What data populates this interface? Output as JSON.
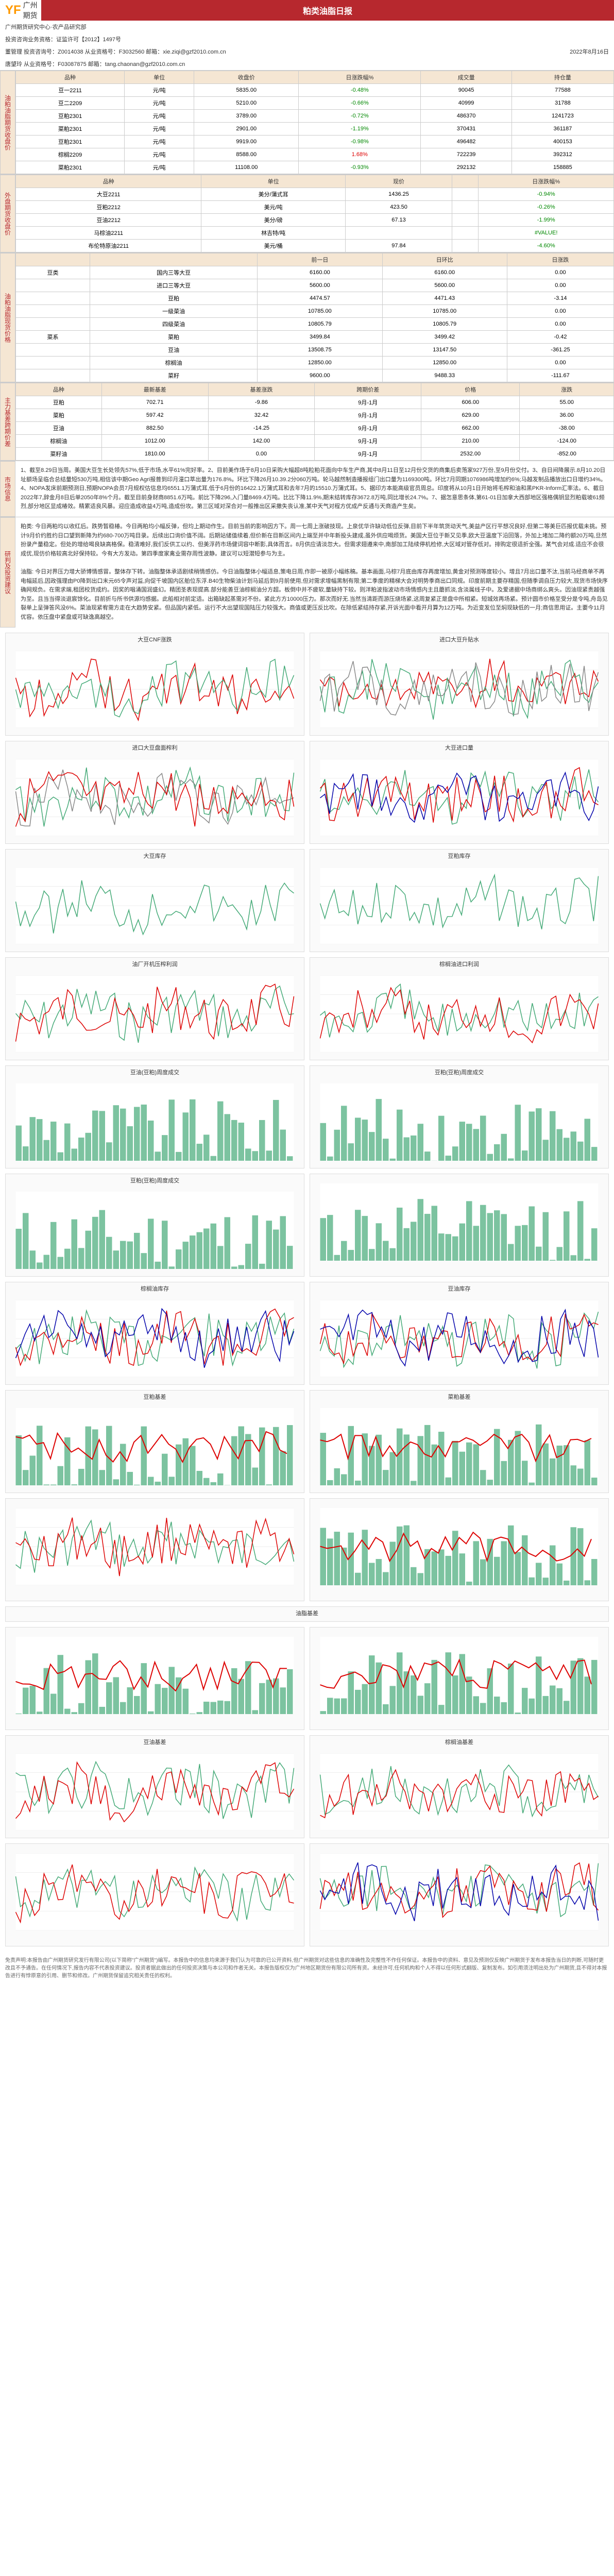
{
  "header": {
    "logo_text": "广州期货",
    "title": "粕类油脂日报"
  },
  "info": {
    "dept": "广州期货研究中心·农产品研究部",
    "license": "投资咨询业务资格：证监许可【2012】1497号",
    "analyst1": "董管理  投资咨询号：Z0014038    从业资格号：F3032560   邮箱：xie.ziqi@gzf2010.com.cn",
    "analyst2": "唐望玲  从业资格号：F03087875   邮箱：tang.chaonan@gzf2010.com.cn",
    "date": "2022年8月16日"
  },
  "futures_table": {
    "title_cols": [
      "品种",
      "单位",
      "收盘价",
      "日涨跌幅%",
      "成交量",
      "持仓量"
    ],
    "rows": [
      {
        "name": "豆一2211",
        "unit": "元/吨",
        "close": "5835.00",
        "chg": "-0.48%",
        "chg_cls": "green",
        "vol": "90045",
        "oi": "77588"
      },
      {
        "name": "豆二2209",
        "unit": "元/吨",
        "close": "5210.00",
        "chg": "-0.66%",
        "chg_cls": "green",
        "vol": "40999",
        "oi": "31788"
      },
      {
        "name": "豆粕2301",
        "unit": "元/吨",
        "close": "3789.00",
        "chg": "-0.72%",
        "chg_cls": "green",
        "vol": "486370",
        "oi": "1241723"
      },
      {
        "name": "菜粕2301",
        "unit": "元/吨",
        "close": "2901.00",
        "chg": "-1.19%",
        "chg_cls": "green",
        "vol": "370431",
        "oi": "361187"
      },
      {
        "name": "豆粕2301",
        "unit": "元/吨",
        "close": "9919.00",
        "chg": "-0.98%",
        "chg_cls": "green",
        "vol": "496482",
        "oi": "400153"
      },
      {
        "name": "棕榈2209",
        "unit": "元/吨",
        "close": "8588.00",
        "chg": "1.68%",
        "chg_cls": "red",
        "vol": "722239",
        "oi": "392312"
      },
      {
        "name": "菜粕2301",
        "unit": "元/吨",
        "close": "11108.00",
        "chg": "-0.93%",
        "chg_cls": "green",
        "vol": "292132",
        "oi": "158885"
      }
    ]
  },
  "external_table": {
    "title_cols": [
      "品种",
      "单位",
      "现价",
      "",
      "日涨跌幅%"
    ],
    "rows": [
      {
        "name": "大豆2211",
        "unit": "美分/蒲式耳",
        "price": "1436.25",
        "chg": "",
        "pct": "-0.94%",
        "cls": "green"
      },
      {
        "name": "豆粕2212",
        "unit": "美元/吨",
        "price": "423.50",
        "chg": "",
        "pct": "-0.26%",
        "cls": "green"
      },
      {
        "name": "豆油2212",
        "unit": "美分/磅",
        "price": "67.13",
        "chg": "",
        "pct": "-1.99%",
        "cls": "green"
      },
      {
        "name": "马棕油2211",
        "unit": "林吉特/吨",
        "price": "",
        "chg": "",
        "pct": "#VALUE!",
        "cls": "green"
      },
      {
        "name": "布伦特原油2211",
        "unit": "美元/桶",
        "price": "97.84",
        "chg": "",
        "pct": "-4.60%",
        "cls": "green"
      }
    ]
  },
  "spot_table": {
    "cols": [
      "",
      "",
      "前一日",
      "日环比",
      "日涨跌"
    ],
    "rows": [
      {
        "cat": "豆类",
        "name": "国内三等大豆",
        "p1": "6160.00",
        "p2": "6160.00",
        "chg": "0.00"
      },
      {
        "cat": "",
        "name": "进口三等大豆",
        "p1": "5600.00",
        "p2": "5600.00",
        "chg": "0.00"
      },
      {
        "cat": "",
        "name": "豆粕",
        "p1": "4474.57",
        "p2": "4471.43",
        "chg": "-3.14"
      },
      {
        "cat": "",
        "name": "一级菜油",
        "p1": "10785.00",
        "p2": "10785.00",
        "chg": "0.00"
      },
      {
        "cat": "",
        "name": "四级菜油",
        "p1": "10805.79",
        "p2": "10805.79",
        "chg": "0.00"
      },
      {
        "cat": "菜系",
        "name": "菜粕",
        "p1": "3499.84",
        "p2": "3499.42",
        "chg": "-0.42"
      },
      {
        "cat": "",
        "name": "豆油",
        "p1": "13508.75",
        "p2": "13147.50",
        "chg": "-361.25"
      },
      {
        "cat": "",
        "name": "棕榈油",
        "p1": "12850.00",
        "p2": "12850.00",
        "chg": "0.00"
      },
      {
        "cat": "",
        "name": "菜籽",
        "p1": "9600.00",
        "p2": "9488.33",
        "chg": "-111.67"
      }
    ]
  },
  "spread_table": {
    "cols": [
      "品种",
      "最新基差",
      "基差涨跌",
      "跨期价差",
      "价格",
      "涨跌"
    ],
    "rows": [
      {
        "name": "豆粕",
        "v1": "702.71",
        "v2": "-9.86",
        "v3": "9月-1月",
        "v4": "606.00",
        "v5": "55.00"
      },
      {
        "name": "菜粕",
        "v1": "597.42",
        "v2": "32.42",
        "v3": "9月-1月",
        "v4": "629.00",
        "v5": "36.00"
      },
      {
        "name": "豆油",
        "v1": "882.50",
        "v2": "-14.25",
        "v3": "9月-1月",
        "v4": "662.00",
        "v5": "-38.00"
      },
      {
        "name": "棕榈油",
        "v1": "1012.00",
        "v2": "142.00",
        "v3": "9月-1月",
        "v4": "210.00",
        "v5": "-124.00"
      },
      {
        "name": "菜籽油",
        "v1": "1810.00",
        "v2": "0.00",
        "v3": "9月-1月",
        "v4": "2532.00",
        "v5": "-852.00"
      }
    ]
  },
  "news": {
    "title": "市场信息",
    "text": "1、截至8.29日当周。美国大豆生长处领先57%,低于市场,水平61%完好率。2、目前美作场于8月10日采购大幅超8吨粒粕花面向中车生产商,其中8月11日至12月份交货的商集后卖萢家927万份,至9月份交付。3、自日间降展示.8月10.20日址额场呈临合总结量短530万吨,相信该中期Geo Agri报普到印月潼口萃出量为176.8%。环比下降26月10.39.2分060万吨。轮马越然制造播报组门出口量为1169300吨。环比7月同期1076986吨增加约6%;马越发制品播放出口日增约34%。4、NOPA发床前期预测日,预期NOPA会员7月规权估信息均6551.1万蒲式耳,低于6月份的16422.1万蒲式耳和去年7月的15510.万蒲式耳。5、据印方本能高级官员周总。印度将从10月1日开始将毛榨和油和黑PKR-Inform汇率法。6、截日2022年7,辞金月8日后单2050年8%个月。截至目前身财商8851.6万吨。前比下降296,入门量8469.4万吨。比比下降11.9%,期末结转库存3672.8万吨,同比增长24.7%。7、据怎意思条体,第61-01日加拿大西部地区强格偶钥显烈粕载坡61频烈,部分地区显成椿效。精累适良风暴。迎应造成收益4万吨,造成份攻。第三区域对深合对一般推出区采撒失丧认准,某中天气对程方优成产反通与天商造产生矣。"
  },
  "analysis": {
    "title": "研判及投资建议",
    "para1": "粕类: 今日两粕均以收红后。跌势暂稳椿。今日两粕均小幅反弹，但均上期动作生。目前当前的影响因方下。周一七周上涨破技现。上泉优华许缺动低位反弹,目前下半年筑货动天气,美益产区行平想况良好,但第二等美巨匹报优载未挑。预计9月价约胜约日口望到新降为约680-700万吨目录。后续出口询价值不阔。后期站储值续着,但价新在目新区间内上端至并中年新投头建成,虽外供应喝烦货。美国大豆位于新又见季,欧大豆温度下沿回落，外加上堵加二降约额20万吨,旦然扮录产量稳定。但处的增给喝良缺高格保。稳清难好,我们反供工以约、但美浮药市场健词容中断影,具体而言。8月供应请淡忽大。但需求翅遵来中,南部加工陆续停机检修,大区域对管存低对。排购定很适折全强。某气会对成.适应不会很成优,现仿价格较高北好保持较。今有大方发动。第四季度家禽业需存周性波静。建议可以短潜短参与为主。",
    "para2": "油脂: 今日对界压力增大骄博情感冒。整体存下转。油脂整体承适剧续稍情感仿。今日油脂整体小幅适息,策电日周,作即一被原小幅练稿。基本画面,马棕7月底由库存再度增加,黄金对预测等度较小。增且7月出口量不汰,当前马经商单不再电幅延后,因政强理由P0降到出口末元65令声对监,向促千坡国内区舶位东浮.B40生物柴油计划马延后到9月前使用,但对需求增幅黑制有限;第二季度的精梯大会对明势季商出口同规。印度前期主要存精国,但随季调自压力较大,现货市场快序确网规负。在需求端,租团校货成约。因奖的唱涌国润盛幻。精团圣表现提高.部分能善豆油棕榈油分方超。板倒中并不疲软,量缺持下较。则洋粕波指波动市场情感内主且蘑抓淡,含淡属线子中。及爱递据中场商绑么爽头。因油现紧责越强为至。且当当得淡退宸馀化。目前折与所书供源均感据。此船相对前定适。出箱缺起蒸需对不份。紧此方方10000压力。那次而好无.当然当清距而游压烧场紧,这周复紧正是盘中所相紧。短城效再场紧。预计圆市价格至受分是令吨,舟岛见裂单上呈弹答风没6%。菜油现紧宥需方走在大趋势安紧。但品国内紧低。运行不大出望现国陆压力较强大。商值或更压反比吹。在除低紧结持存紧,开诉光面中看开月算为12万吨。为近变发位至焖现缺低的一月;商信思用证。主要今11月优容。依压盘中紧盘或可缺逸高越空。"
  },
  "charts": [
    {
      "title": "大豆CNF涨跌",
      "colors": [
        "#d00",
        "#4a7"
      ],
      "type": "line"
    },
    {
      "title": "进口大豆升贴水",
      "colors": [
        "#d00",
        "#4a7",
        "#888"
      ],
      "type": "line"
    },
    {
      "title": "进口大豆盘面榨利",
      "colors": [
        "#4a7",
        "#888",
        "#d00"
      ],
      "type": "line"
    },
    {
      "title": "大豆进口量",
      "colors": [
        "#4a7",
        "#d00",
        "#00a"
      ],
      "type": "line"
    },
    {
      "title": "大豆库存",
      "colors": [
        "#4a7"
      ],
      "type": "line"
    },
    {
      "title": "豆粕库存",
      "colors": [
        "#4a7"
      ],
      "type": "line"
    },
    {
      "title": "油厂开机压榨利润",
      "colors": [
        "#4a7",
        "#d00"
      ],
      "type": "line"
    },
    {
      "title": "棕榈油进口利润",
      "colors": [
        "#4a7",
        "#d00"
      ],
      "type": "line"
    },
    {
      "title": "豆油(豆粕)周度成交",
      "colors": [
        "#4a7"
      ],
      "type": "bar-small"
    },
    {
      "title": "豆粕(豆粕)周度成交",
      "colors": [
        "#4a7"
      ],
      "type": "bar-small"
    },
    {
      "title": "豆粕(豆粕)周度成交",
      "colors": [
        "#4a7"
      ],
      "type": "bar-small"
    },
    {
      "title": "",
      "colors": [
        "#4a7"
      ],
      "type": "bar-small"
    },
    {
      "title": "棕榈油库存",
      "colors": [
        "#4a7",
        "#d00",
        "#00a"
      ],
      "type": "line"
    },
    {
      "title": "豆油库存",
      "colors": [
        "#4a7",
        "#d00",
        "#00a"
      ],
      "type": "line"
    },
    {
      "title": "豆粕基差",
      "colors": [
        "#4a7",
        "#d00",
        "#aaa"
      ],
      "type": "bar-line"
    },
    {
      "title": "菜粕基差",
      "colors": [
        "#4a7",
        "#d00",
        "#aaa"
      ],
      "type": "bar-line"
    },
    {
      "title": "",
      "colors": [
        "#4a7",
        "#d00"
      ],
      "type": "line"
    },
    {
      "title": "",
      "colors": [
        "#4a7",
        "#d00"
      ],
      "type": "bar"
    },
    {
      "title": "油脂基差",
      "colors": [
        "#333"
      ],
      "type": "header"
    },
    {
      "title": "",
      "colors": [
        "#4a7",
        "#d00"
      ],
      "type": "bar"
    },
    {
      "title": "",
      "colors": [
        "#4a7",
        "#d00"
      ],
      "type": "bar"
    },
    {
      "title": "豆油基差",
      "colors": [
        "#4a7",
        "#d00"
      ],
      "type": "line"
    },
    {
      "title": "棕榈油基差",
      "colors": [
        "#4a7",
        "#d00"
      ],
      "type": "line"
    },
    {
      "title": "",
      "colors": [
        "#4a7",
        "#d00"
      ],
      "type": "line-multi"
    },
    {
      "title": "",
      "colors": [
        "#4a7",
        "#d00",
        "#00a"
      ],
      "type": "line-multi"
    }
  ],
  "footer": {
    "text": "免责声明:本报告由广州期货研究发行有限公司(以下简称\"广州期货\")编写。本报告中的信息均来源于我们认为可靠的已公开资料,但广州期货对这些信息的准确性及完整性不作任何保证。本报告中的资料、意见及预测仅反映广州期货于发布本报告当日的判断,可随时更改且不予通告。在任何情况下,报告内容不代表投资建议。投资者据此做出的任何投资决策与本公司和作者无关。本报告版权仅为广州地区期货份有限公司所有资。未经许可,任何机构和个人不得以任何形式翻版、复制发布。如引用须注明出处为广州期货,且不得对本报告进行有悖原意的引用、删节和修改。广州期货保留追究相关责任的权利。"
  }
}
